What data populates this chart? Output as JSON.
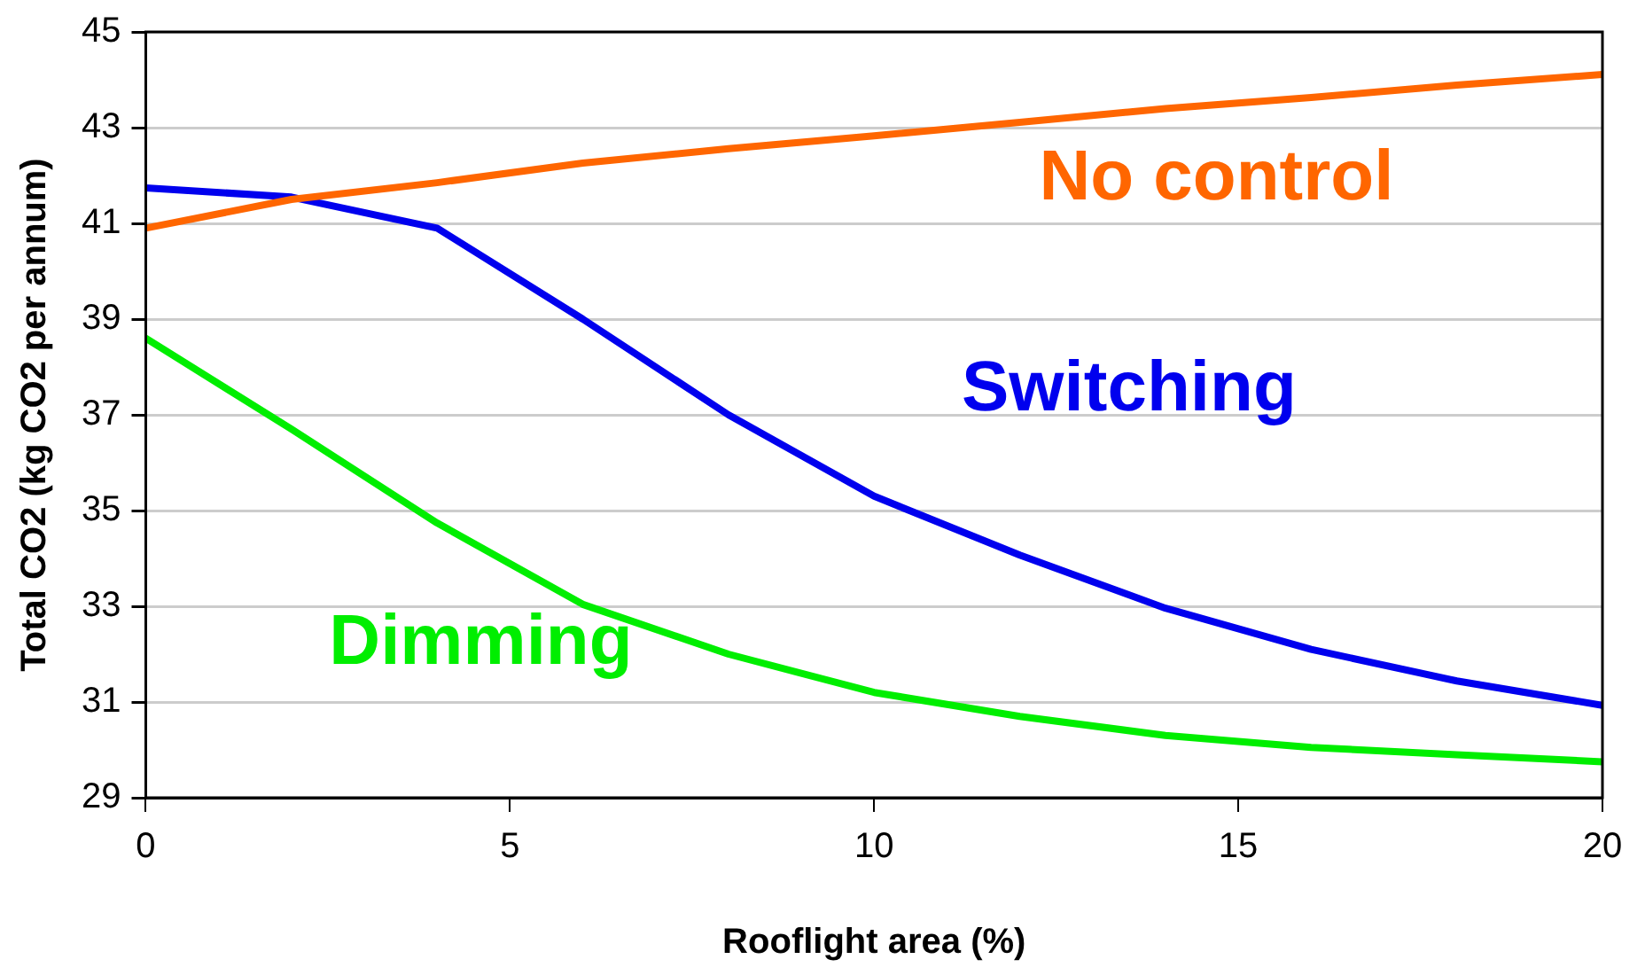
{
  "chart_data": {
    "type": "line",
    "xlabel": "Rooflight area (%)",
    "ylabel": "Total CO2 (kg CO2 per annum)",
    "x": [
      0,
      2,
      4,
      6,
      8,
      10,
      12,
      14,
      16,
      18,
      20
    ],
    "series": [
      {
        "name": "No control",
        "color": "#ff6600",
        "values": [
          40.9,
          41.5,
          41.85,
          42.26,
          42.56,
          42.83,
          43.11,
          43.4,
          43.63,
          43.89,
          44.11
        ]
      },
      {
        "name": "Switching",
        "color": "#0000ee",
        "values": [
          41.74,
          41.55,
          40.9,
          39.0,
          37.0,
          35.3,
          34.07,
          32.96,
          32.1,
          31.44,
          30.93
        ]
      },
      {
        "name": "Dimming",
        "color": "#00ee00",
        "values": [
          38.6,
          36.7,
          34.74,
          33.04,
          32.0,
          31.2,
          30.7,
          30.3,
          30.05,
          29.9,
          29.75
        ]
      }
    ],
    "xlim": [
      0,
      20
    ],
    "xticks": [
      0,
      5,
      10,
      15,
      20
    ],
    "ylim": [
      29,
      45
    ],
    "yticks": [
      29,
      31,
      33,
      35,
      37,
      39,
      41,
      43,
      45
    ],
    "grid": "y",
    "legend": false,
    "marker": "none",
    "line_style": "solid"
  }
}
